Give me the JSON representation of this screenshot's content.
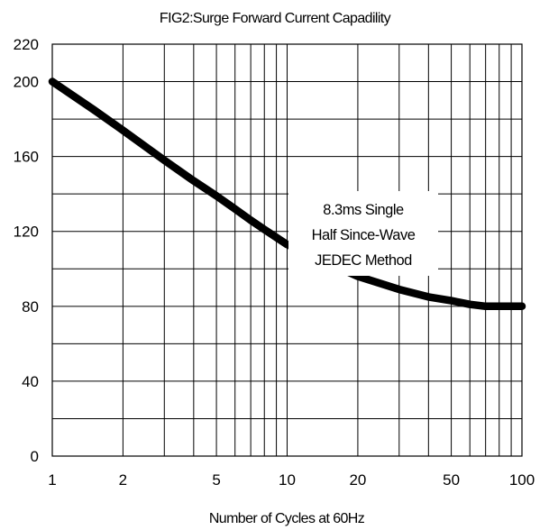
{
  "chart_data": {
    "type": "line",
    "title": "FIG2:Surge Forward Current Capadility",
    "xlabel": "Number of Cycles at 60Hz",
    "ylabel": "",
    "x_scale": "log",
    "xlim": [
      1,
      100
    ],
    "ylim": [
      0,
      220
    ],
    "x_ticks": [
      "1",
      "2",
      "5",
      "10",
      "20",
      "50",
      "100"
    ],
    "y_ticks": [
      "0",
      "40",
      "80",
      "120",
      "160",
      "200",
      "220"
    ],
    "grid": true,
    "annotation": [
      "8.3ms Single",
      "Half Since-Wave",
      "JEDEC Method"
    ],
    "series": [
      {
        "x": [
          1,
          1.5,
          2,
          3,
          4,
          5,
          6,
          7,
          8,
          10,
          15,
          20,
          30,
          40,
          50,
          60,
          70,
          80,
          100
        ],
        "y": [
          200,
          185,
          174,
          158,
          147,
          139,
          132,
          126,
          121,
          113,
          103,
          96,
          89,
          85,
          83,
          81,
          80,
          80,
          80
        ]
      }
    ]
  },
  "colors": {
    "line": "#000000",
    "grid": "#000000",
    "background": "#ffffff"
  }
}
